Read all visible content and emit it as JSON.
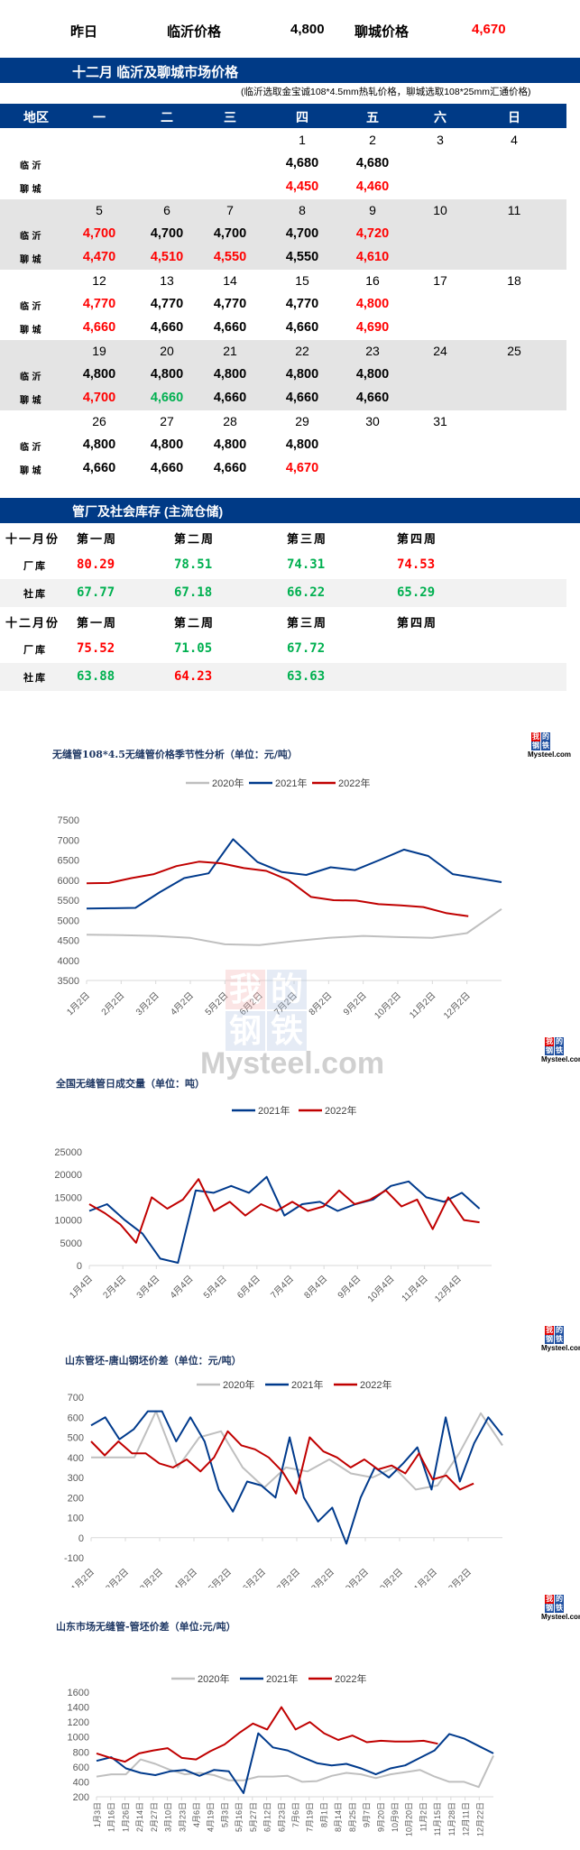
{
  "yesterday": {
    "label": "昨日",
    "linyi_label": "临沂价格",
    "linyi_value": "4,800",
    "liaocheng_label": "聊城价格",
    "liaocheng_value": "4,670"
  },
  "calendar": {
    "title": "十二月  临沂及聊城市场价格",
    "note": "(临沂选取金宝诚108*4.5mm热轧价格，聊城选取108*25mm汇通价格)",
    "headers": [
      "地区",
      "一",
      "二",
      "三",
      "四",
      "五",
      "六",
      "日"
    ],
    "row_labels": {
      "linyi": "临 沂",
      "liaocheng": "聊 城"
    },
    "weeks": [
      {
        "days": [
          "",
          "",
          "",
          "1",
          "2",
          "3",
          "4"
        ],
        "linyi": [
          null,
          null,
          null,
          {
            "v": "4,680",
            "c": "black"
          },
          {
            "v": "4,680",
            "c": "black"
          },
          null,
          null
        ],
        "liaocheng": [
          null,
          null,
          null,
          {
            "v": "4,450",
            "c": "red"
          },
          {
            "v": "4,460",
            "c": "red"
          },
          null,
          null
        ]
      },
      {
        "days": [
          "5",
          "6",
          "7",
          "8",
          "9",
          "10",
          "11"
        ],
        "linyi": [
          {
            "v": "4,700",
            "c": "red"
          },
          {
            "v": "4,700",
            "c": "black"
          },
          {
            "v": "4,700",
            "c": "black"
          },
          {
            "v": "4,700",
            "c": "black"
          },
          {
            "v": "4,720",
            "c": "red"
          },
          null,
          null
        ],
        "liaocheng": [
          {
            "v": "4,470",
            "c": "red"
          },
          {
            "v": "4,510",
            "c": "red"
          },
          {
            "v": "4,550",
            "c": "red"
          },
          {
            "v": "4,550",
            "c": "black"
          },
          {
            "v": "4,610",
            "c": "red"
          },
          null,
          null
        ]
      },
      {
        "days": [
          "12",
          "13",
          "14",
          "15",
          "16",
          "17",
          "18"
        ],
        "linyi": [
          {
            "v": "4,770",
            "c": "red"
          },
          {
            "v": "4,770",
            "c": "black"
          },
          {
            "v": "4,770",
            "c": "black"
          },
          {
            "v": "4,770",
            "c": "black"
          },
          {
            "v": "4,800",
            "c": "red"
          },
          null,
          null
        ],
        "liaocheng": [
          {
            "v": "4,660",
            "c": "red"
          },
          {
            "v": "4,660",
            "c": "black"
          },
          {
            "v": "4,660",
            "c": "black"
          },
          {
            "v": "4,660",
            "c": "black"
          },
          {
            "v": "4,690",
            "c": "red"
          },
          null,
          null
        ]
      },
      {
        "days": [
          "19",
          "20",
          "21",
          "22",
          "23",
          "24",
          "25"
        ],
        "linyi": [
          {
            "v": "4,800",
            "c": "black"
          },
          {
            "v": "4,800",
            "c": "black"
          },
          {
            "v": "4,800",
            "c": "black"
          },
          {
            "v": "4,800",
            "c": "black"
          },
          {
            "v": "4,800",
            "c": "black"
          },
          null,
          null
        ],
        "liaocheng": [
          {
            "v": "4,700",
            "c": "red"
          },
          {
            "v": "4,660",
            "c": "green"
          },
          {
            "v": "4,660",
            "c": "black"
          },
          {
            "v": "4,660",
            "c": "black"
          },
          {
            "v": "4,660",
            "c": "black"
          },
          null,
          null
        ]
      },
      {
        "days": [
          "26",
          "27",
          "28",
          "29",
          "30",
          "31",
          ""
        ],
        "linyi": [
          {
            "v": "4,800",
            "c": "black"
          },
          {
            "v": "4,800",
            "c": "black"
          },
          {
            "v": "4,800",
            "c": "black"
          },
          {
            "v": "4,800",
            "c": "black"
          },
          null,
          null,
          null
        ],
        "liaocheng": [
          {
            "v": "4,660",
            "c": "black"
          },
          {
            "v": "4,660",
            "c": "black"
          },
          {
            "v": "4,660",
            "c": "black"
          },
          {
            "v": "4,670",
            "c": "red"
          },
          null,
          null,
          null
        ]
      }
    ]
  },
  "inventory": {
    "title": "管厂及社会库存 (主流仓储)",
    "months": [
      {
        "label": "十一月份",
        "weeks": [
          "第一周",
          "第二周",
          "第三周",
          "第四周"
        ],
        "factory_label": "厂库",
        "factory": [
          {
            "v": "80.29",
            "c": "red"
          },
          {
            "v": "78.51",
            "c": "green"
          },
          {
            "v": "74.31",
            "c": "green"
          },
          {
            "v": "74.53",
            "c": "red"
          }
        ],
        "social_label": "社库",
        "social": [
          {
            "v": "67.77",
            "c": "green"
          },
          {
            "v": "67.18",
            "c": "green"
          },
          {
            "v": "66.22",
            "c": "green"
          },
          {
            "v": "65.29",
            "c": "green"
          }
        ]
      },
      {
        "label": "十二月份",
        "weeks": [
          "第一周",
          "第二周",
          "第三周",
          "第四周"
        ],
        "factory_label": "厂库",
        "factory": [
          {
            "v": "75.52",
            "c": "red"
          },
          {
            "v": "71.05",
            "c": "green"
          },
          {
            "v": "67.72",
            "c": "green"
          },
          null
        ],
        "social_label": "社库",
        "social": [
          {
            "v": "63.88",
            "c": "green"
          },
          {
            "v": "64.23",
            "c": "red"
          },
          {
            "v": "63.63",
            "c": "green"
          },
          null
        ]
      }
    ]
  },
  "logo": {
    "chars": [
      "我",
      "的",
      "钢",
      "铁"
    ],
    "text": "Mysteel.com",
    "watermark": "Mysteel.com"
  },
  "colors": {
    "navy": "#003a86",
    "y2020": "#bfbfbf",
    "y2021": "#003a8c",
    "y2022": "#c00000",
    "up": "#ff0000",
    "down": "#00b050"
  },
  "chart_data": [
    {
      "type": "line",
      "title": "无缝管108*4.5无缝管价格季节性分析（单位：元/吨）",
      "legend": [
        "2020年",
        "2021年",
        "2022年"
      ],
      "xlabel": "",
      "ylabel": "",
      "categories": [
        "1月2日",
        "2月2日",
        "3月2日",
        "4月2日",
        "5月2日",
        "6月2日",
        "7月2日",
        "8月2日",
        "9月2日",
        "10月2日",
        "11月2日",
        "12月2日"
      ],
      "ylim": [
        3500,
        7500
      ],
      "yticks": [
        3500,
        4000,
        4500,
        5000,
        5500,
        6000,
        6500,
        7000,
        7500
      ],
      "series": [
        {
          "name": "2020年",
          "values": [
            4640,
            4630,
            4610,
            4560,
            4400,
            4380,
            4480,
            4560,
            4610,
            4580,
            4560,
            4680,
            5280
          ]
        },
        {
          "name": "2021年",
          "values": [
            5290,
            5300,
            5310,
            5700,
            6050,
            6170,
            7020,
            6450,
            6200,
            6130,
            6320,
            6250,
            6500,
            6760,
            6600,
            6150,
            6050,
            5950
          ]
        },
        {
          "name": "2022年",
          "values": [
            5920,
            5930,
            6050,
            6150,
            6350,
            6460,
            6420,
            6300,
            6230,
            6000,
            5580,
            5500,
            5490,
            5400,
            5370,
            5330,
            5180,
            5100
          ]
        }
      ]
    },
    {
      "type": "line",
      "title": "全国无缝管日成交量（单位：吨）",
      "legend": [
        "2021年",
        "2022年"
      ],
      "xlabel": "",
      "ylabel": "",
      "categories": [
        "1月4日",
        "2月4日",
        "3月4日",
        "4月4日",
        "5月4日",
        "6月4日",
        "7月4日",
        "8月4日",
        "9月4日",
        "10月4日",
        "11月4日",
        "12月4日"
      ],
      "ylim": [
        0,
        25000
      ],
      "yticks": [
        0,
        5000,
        10000,
        15000,
        20000,
        25000
      ],
      "series": [
        {
          "name": "2021年",
          "values": [
            12000,
            13500,
            10000,
            7000,
            1500,
            600,
            16500,
            16000,
            17500,
            16000,
            19500,
            11000,
            13500,
            14000,
            12000,
            13500,
            14500,
            17500,
            18500,
            15000,
            14000,
            16000,
            12500
          ]
        },
        {
          "name": "2022年",
          "values": [
            13500,
            11500,
            9000,
            5000,
            15000,
            12500,
            14500,
            19000,
            12000,
            14000,
            11000,
            13500,
            12000,
            14000,
            12000,
            13000,
            16500,
            13500,
            14500,
            16500,
            13000,
            14500,
            8000,
            15000,
            10000,
            9500
          ]
        }
      ]
    },
    {
      "type": "line",
      "title": "山东管坯-唐山钢坯价差（单位：元/吨）",
      "legend": [
        "2020年",
        "2021年",
        "2022年"
      ],
      "xlabel": "",
      "ylabel": "",
      "categories": [
        "1月2日",
        "2月2日",
        "3月2日",
        "4月2日",
        "5月2日",
        "6月2日",
        "7月2日",
        "8月2日",
        "9月2日",
        "10月2日",
        "11月2日",
        "12月2日"
      ],
      "ylim": [
        -100,
        700
      ],
      "yticks": [
        -100,
        0,
        100,
        200,
        300,
        400,
        500,
        600,
        700
      ],
      "series": [
        {
          "name": "2020年",
          "values": [
            400,
            400,
            400,
            630,
            350,
            500,
            530,
            350,
            250,
            350,
            330,
            390,
            320,
            300,
            350,
            240,
            260,
            420,
            620,
            460
          ]
        },
        {
          "name": "2021年",
          "values": [
            560,
            600,
            490,
            540,
            630,
            630,
            480,
            600,
            480,
            240,
            130,
            280,
            260,
            200,
            500,
            200,
            80,
            150,
            -30,
            200,
            350,
            300,
            370,
            450,
            240,
            600,
            280,
            470,
            600,
            510
          ]
        },
        {
          "name": "2022年",
          "values": [
            480,
            410,
            480,
            420,
            420,
            370,
            350,
            390,
            330,
            400,
            530,
            460,
            440,
            400,
            330,
            220,
            500,
            430,
            400,
            350,
            390,
            340,
            360,
            320,
            420,
            290,
            310,
            240,
            270
          ]
        }
      ]
    },
    {
      "type": "line",
      "title": "山东市场无缝管-管坯价差（单位:元/吨）",
      "legend": [
        "2020年",
        "2021年",
        "2022年"
      ],
      "xlabel": "",
      "ylabel": "",
      "categories": [
        "1月3日",
        "1月16日",
        "1月26日",
        "2月14日",
        "2月27日",
        "3月10日",
        "3月23日",
        "4月6日",
        "4月19日",
        "5月3日",
        "5月16日",
        "5月27日",
        "6月12日",
        "6月23日",
        "7月6日",
        "7月19日",
        "8月1日",
        "8月14日",
        "8月25日",
        "9月7日",
        "9月20日",
        "10月9日",
        "10月20日",
        "11月2日",
        "11月15日",
        "11月28日",
        "12月11日",
        "12月22日"
      ],
      "ylim": [
        200,
        1600
      ],
      "yticks": [
        200,
        400,
        600,
        800,
        1000,
        1200,
        1400,
        1600
      ],
      "series": [
        {
          "name": "2020年",
          "values": [
            470,
            500,
            500,
            700,
            640,
            560,
            500,
            520,
            490,
            420,
            420,
            470,
            470,
            480,
            400,
            410,
            480,
            520,
            500,
            450,
            500,
            530,
            560,
            470,
            400,
            400,
            330,
            750
          ]
        },
        {
          "name": "2021年",
          "values": [
            680,
            730,
            580,
            520,
            490,
            540,
            560,
            480,
            560,
            540,
            250,
            1050,
            860,
            820,
            730,
            650,
            620,
            640,
            580,
            500,
            580,
            620,
            720,
            820,
            1040,
            980,
            880,
            780
          ]
        },
        {
          "name": "2022年",
          "values": [
            780,
            720,
            670,
            780,
            820,
            850,
            720,
            700,
            810,
            900,
            1050,
            1180,
            1100,
            1400,
            1100,
            1200,
            1050,
            960,
            1020,
            930,
            950,
            940,
            940,
            950,
            910
          ]
        }
      ]
    }
  ]
}
